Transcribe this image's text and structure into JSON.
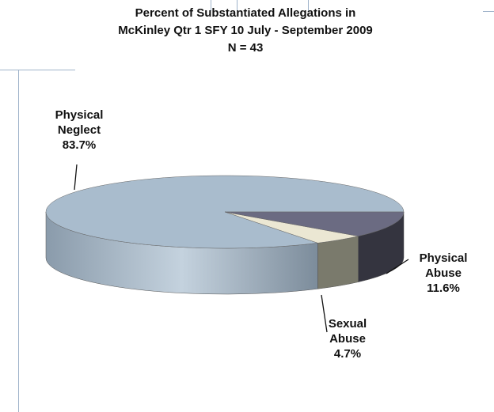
{
  "chart_data": {
    "type": "pie",
    "title": [
      "Percent of Substantiated Allegations in",
      "McKinley Qtr 1 SFY 10 July - September 2009"
    ],
    "subtitle": "N = 43",
    "categories": [
      "Physical Neglect",
      "Sexual Abuse",
      "Physical Abuse"
    ],
    "values": [
      83.7,
      4.7,
      11.6
    ],
    "value_labels": [
      "83.7%",
      "4.7%",
      "11.6%"
    ],
    "colors": [
      "#a9bccd",
      "#ebe7d3",
      "#6b6b82"
    ],
    "side_colors": [
      "#8d9fb0",
      "#7a7a6c",
      "#34343f"
    ]
  }
}
